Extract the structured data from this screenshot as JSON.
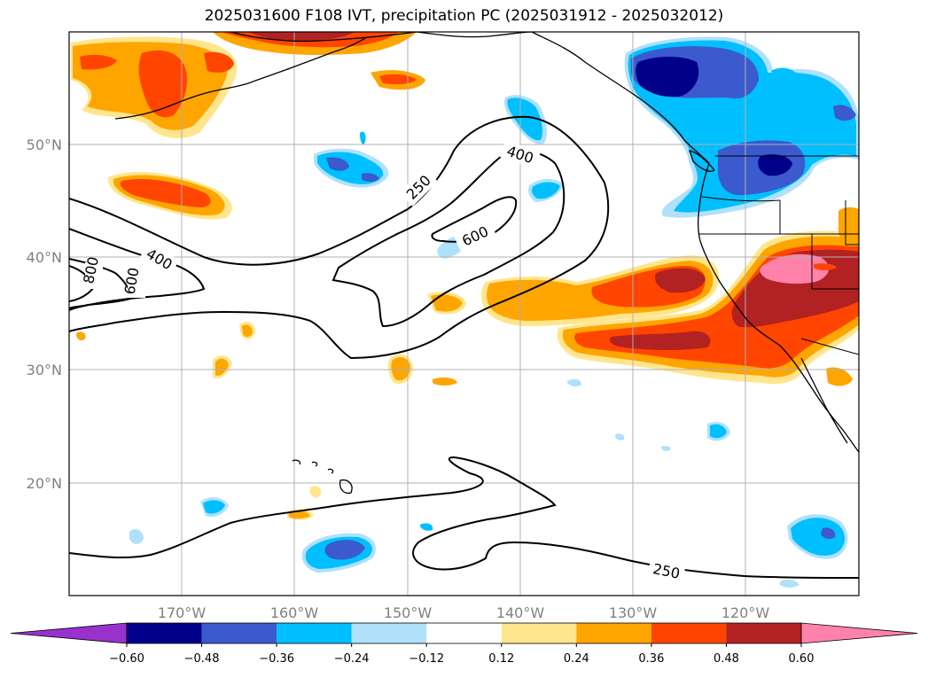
{
  "title": "2025031600 F108 IVT, precipitation PC (2025031912 - 2025032012)",
  "lat_labels": [
    "50°N",
    "40°N",
    "30°N",
    "20°N"
  ],
  "lon_labels": [
    "170°W",
    "160°W",
    "150°W",
    "140°W",
    "130°W",
    "120°W"
  ],
  "ivt_contour_labels": [
    "250",
    "400",
    "600",
    "800",
    "400",
    "600",
    "250"
  ],
  "colorbar": {
    "tick_labels": [
      "−0.60",
      "−0.48",
      "−0.36",
      "−0.24",
      "−0.12",
      "0.12",
      "0.24",
      "0.36",
      "0.48",
      "0.60"
    ],
    "colors": [
      "#9932cc",
      "#00008b",
      "#3a5acd",
      "#00bfff",
      "#afe1fa",
      "#ffffff",
      "#ffe68c",
      "#ffa500",
      "#ff4500",
      "#b22222",
      "#ff82ab"
    ],
    "extend": "both"
  },
  "map": {
    "projection": "PlateCarree",
    "extent_lon": [
      -180,
      -110
    ],
    "extent_lat": [
      10,
      60
    ],
    "gridlines": true,
    "fields": [
      "IVT contours",
      "precipitation PC shaded"
    ]
  }
}
